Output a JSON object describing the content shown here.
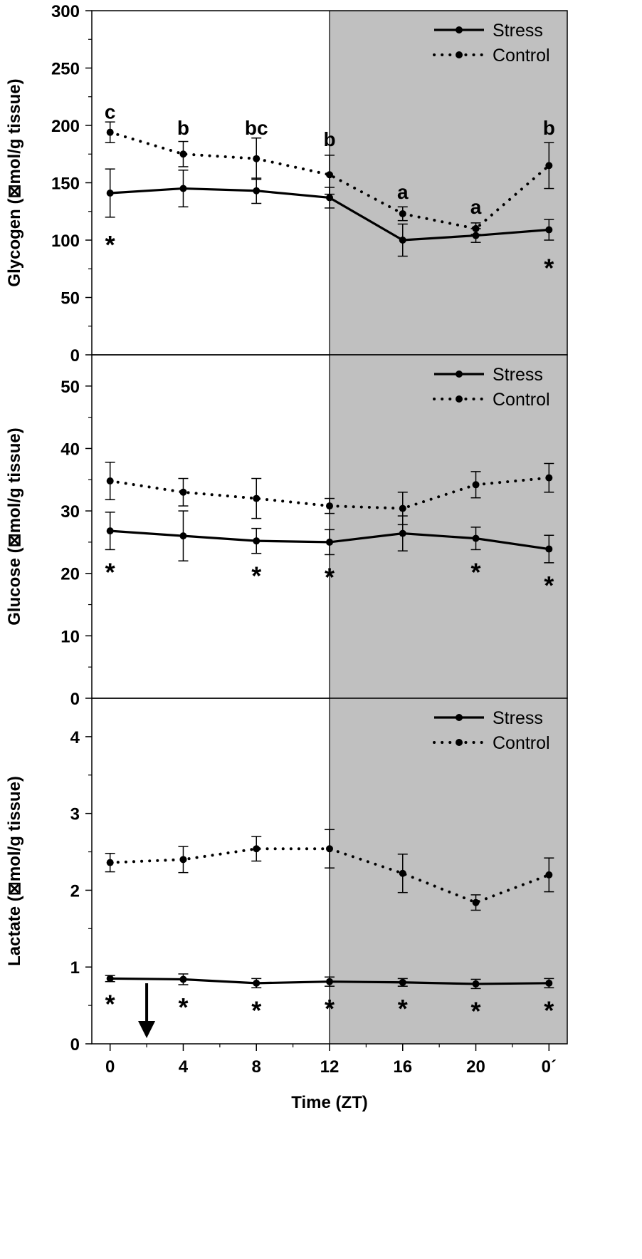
{
  "figure": {
    "xlabel": "Time (ZT)",
    "x_tick_labels": [
      "0",
      "4",
      "8",
      "12",
      "16",
      "20",
      "0´"
    ],
    "dark_phase_start_x": 12,
    "arrow_marker_x": 2
  },
  "chart_data": [
    {
      "type": "line",
      "title": "",
      "xlabel": "Time (ZT)",
      "ylabel": "Glycogen (⊠mol/g tissue)",
      "x": [
        0,
        4,
        8,
        12,
        16,
        20,
        24
      ],
      "xlim": [
        -1,
        25
      ],
      "ylim": [
        0,
        300
      ],
      "yticks": [
        0,
        50,
        100,
        150,
        200,
        250,
        300
      ],
      "shaded_region_x": [
        12,
        25
      ],
      "legend": {
        "position": "top-right",
        "entries": [
          "Stress",
          "Control"
        ]
      },
      "series": [
        {
          "name": "Stress",
          "style": "solid",
          "values": [
            141,
            145,
            143,
            137,
            100,
            104,
            109
          ],
          "errors": [
            21,
            16,
            11,
            9,
            14,
            6,
            9
          ]
        },
        {
          "name": "Control",
          "style": "dotted",
          "values": [
            194,
            175,
            171,
            157,
            123,
            110,
            165
          ],
          "errors": [
            9,
            11,
            18,
            17,
            6,
            5,
            20
          ]
        }
      ],
      "letter_annotations": [
        {
          "x": 0,
          "label": "c",
          "y": 206
        },
        {
          "x": 4,
          "label": "b",
          "y": 192
        },
        {
          "x": 8,
          "label": "bc",
          "y": 192
        },
        {
          "x": 12,
          "label": "b",
          "y": 182
        },
        {
          "x": 16,
          "label": "a",
          "y": 136
        },
        {
          "x": 20,
          "label": "a",
          "y": 123
        },
        {
          "x": 24,
          "label": "b",
          "y": 192
        }
      ],
      "significance_markers": [
        {
          "x": 0,
          "label": "*",
          "y": 98
        },
        {
          "x": 24,
          "label": "*",
          "y": 78
        }
      ]
    },
    {
      "type": "line",
      "title": "",
      "xlabel": "Time (ZT)",
      "ylabel": "Glucose (⊠mol/g tissue)",
      "x": [
        0,
        4,
        8,
        12,
        16,
        20,
        24
      ],
      "xlim": [
        -1,
        25
      ],
      "ylim": [
        0,
        55
      ],
      "yticks": [
        0,
        10,
        20,
        30,
        40,
        50
      ],
      "shaded_region_x": [
        12,
        25
      ],
      "legend": {
        "position": "top-right",
        "entries": [
          "Stress",
          "Control"
        ]
      },
      "series": [
        {
          "name": "Stress",
          "style": "solid",
          "values": [
            26.8,
            26.0,
            25.2,
            25.0,
            26.4,
            25.6,
            23.9
          ],
          "errors": [
            3.0,
            4.0,
            2.0,
            2.0,
            2.8,
            1.8,
            2.2
          ]
        },
        {
          "name": "Control",
          "style": "dotted",
          "values": [
            34.8,
            33.0,
            32.0,
            30.8,
            30.4,
            34.2,
            35.3
          ],
          "errors": [
            3.0,
            2.2,
            3.2,
            1.2,
            2.6,
            2.1,
            2.3
          ]
        }
      ],
      "significance_markers": [
        {
          "x": 0,
          "label": "*"
        },
        {
          "x": 8,
          "label": "*"
        },
        {
          "x": 12,
          "label": "*"
        },
        {
          "x": 20,
          "label": "*"
        },
        {
          "x": 24,
          "label": "*"
        }
      ]
    },
    {
      "type": "line",
      "title": "",
      "xlabel": "Time (ZT)",
      "ylabel": "Lactate (⊠mol/g tissue)",
      "x": [
        0,
        4,
        8,
        12,
        16,
        20,
        24
      ],
      "xlim": [
        -1,
        25
      ],
      "ylim": [
        0,
        4.5
      ],
      "yticks": [
        0,
        1,
        2,
        3,
        4
      ],
      "shaded_region_x": [
        12,
        25
      ],
      "legend": {
        "position": "top-right",
        "entries": [
          "Stress",
          "Control"
        ]
      },
      "series": [
        {
          "name": "Stress",
          "style": "solid",
          "values": [
            0.85,
            0.84,
            0.79,
            0.81,
            0.8,
            0.78,
            0.79
          ],
          "errors": [
            0.04,
            0.07,
            0.06,
            0.06,
            0.05,
            0.06,
            0.06
          ]
        },
        {
          "name": "Control",
          "style": "dotted",
          "values": [
            2.36,
            2.4,
            2.54,
            2.54,
            2.22,
            1.84,
            2.2
          ],
          "errors": [
            0.12,
            0.17,
            0.16,
            0.25,
            0.25,
            0.1,
            0.22
          ]
        }
      ],
      "significance_markers": [
        {
          "x": 0,
          "label": "*"
        },
        {
          "x": 4,
          "label": "*"
        },
        {
          "x": 8,
          "label": "*"
        },
        {
          "x": 12,
          "label": "*"
        },
        {
          "x": 16,
          "label": "*"
        },
        {
          "x": 20,
          "label": "*"
        },
        {
          "x": 24,
          "label": "*"
        }
      ]
    }
  ]
}
